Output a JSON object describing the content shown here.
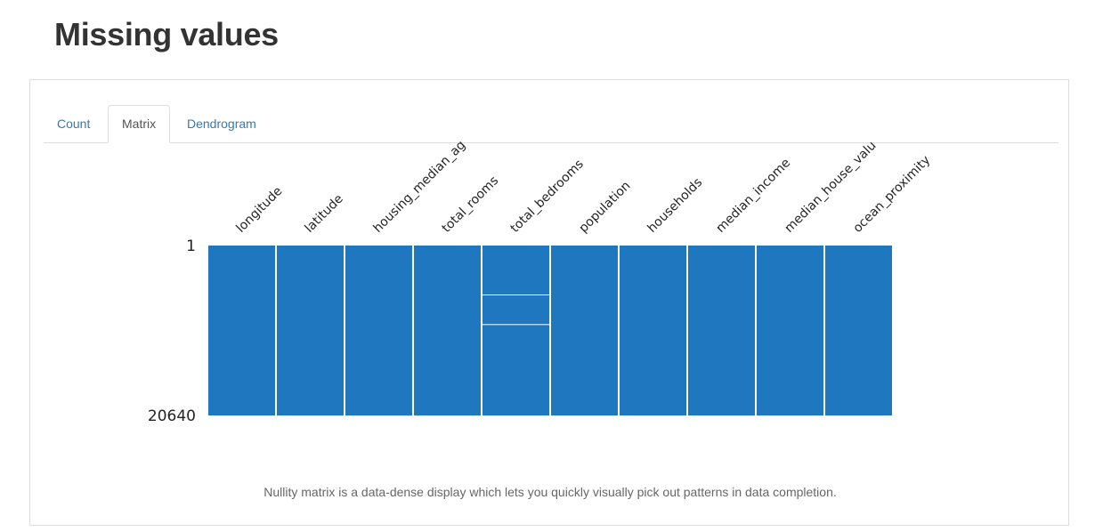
{
  "page": {
    "title": "Missing values"
  },
  "tabs": [
    {
      "label": "Count",
      "active": false
    },
    {
      "label": "Matrix",
      "active": true
    },
    {
      "label": "Dendrogram",
      "active": false
    }
  ],
  "caption": "Nullity matrix is a data-dense display which lets you quickly visually pick out patterns in data completion.",
  "colors": {
    "present": "#1f77bf",
    "missing": "#ffffff"
  },
  "chart_data": {
    "type": "heatmap",
    "columns": [
      "longitude",
      "latitude",
      "housing_median_ag",
      "total_rooms",
      "total_bedrooms",
      "population",
      "households",
      "median_income",
      "median_house_valu",
      "ocean_proximity"
    ],
    "row_labels": [
      "1",
      "20640"
    ],
    "row_range": [
      1,
      20640
    ],
    "missing_rows": {
      "total_bedrooms": [
        6000,
        9600
      ]
    }
  }
}
